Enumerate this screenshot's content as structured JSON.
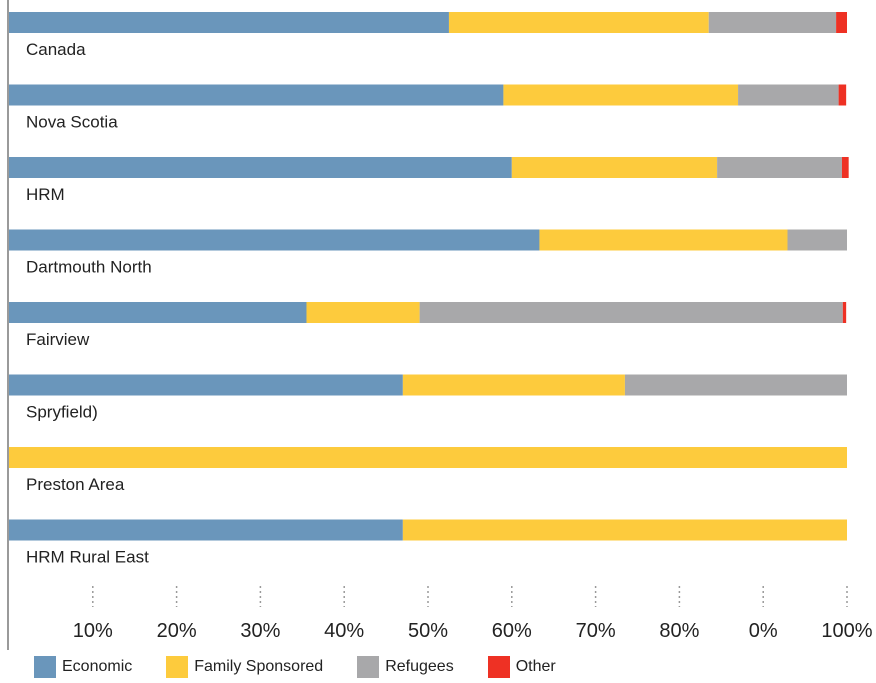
{
  "chart_data": {
    "type": "bar",
    "orientation": "horizontal",
    "stacked": true,
    "categories": [
      "Canada",
      "Nova Scotia",
      "HRM",
      "Dartmouth North",
      "Fairview",
      "Spryfield)",
      "Preston Area",
      "HRM Rural East"
    ],
    "series": [
      {
        "name": "Economic",
        "color": "#6a96bb",
        "values": [
          52.5,
          59,
          60,
          63.3,
          35.5,
          47,
          0,
          47
        ]
      },
      {
        "name": "Family Sponsored",
        "color": "#fdcb3d",
        "values": [
          31,
          28,
          24.5,
          29.6,
          13.5,
          26.5,
          100,
          53
        ]
      },
      {
        "name": "Refugees",
        "color": "#a8a8aa",
        "values": [
          15.2,
          12,
          14.9,
          7.1,
          50.5,
          26.5,
          0,
          0
        ]
      },
      {
        "name": "Other",
        "color": "#ee3124",
        "values": [
          1.3,
          0.9,
          0.8,
          0,
          0.4,
          0,
          0,
          0
        ]
      }
    ],
    "xlim": [
      0,
      100
    ],
    "x_tick_labels": [
      "10%",
      "20%",
      "30%",
      "40%",
      "50%",
      "60%",
      "70%",
      "80%",
      "0%",
      "100%"
    ],
    "grid": false,
    "legend_position": "bottom"
  }
}
